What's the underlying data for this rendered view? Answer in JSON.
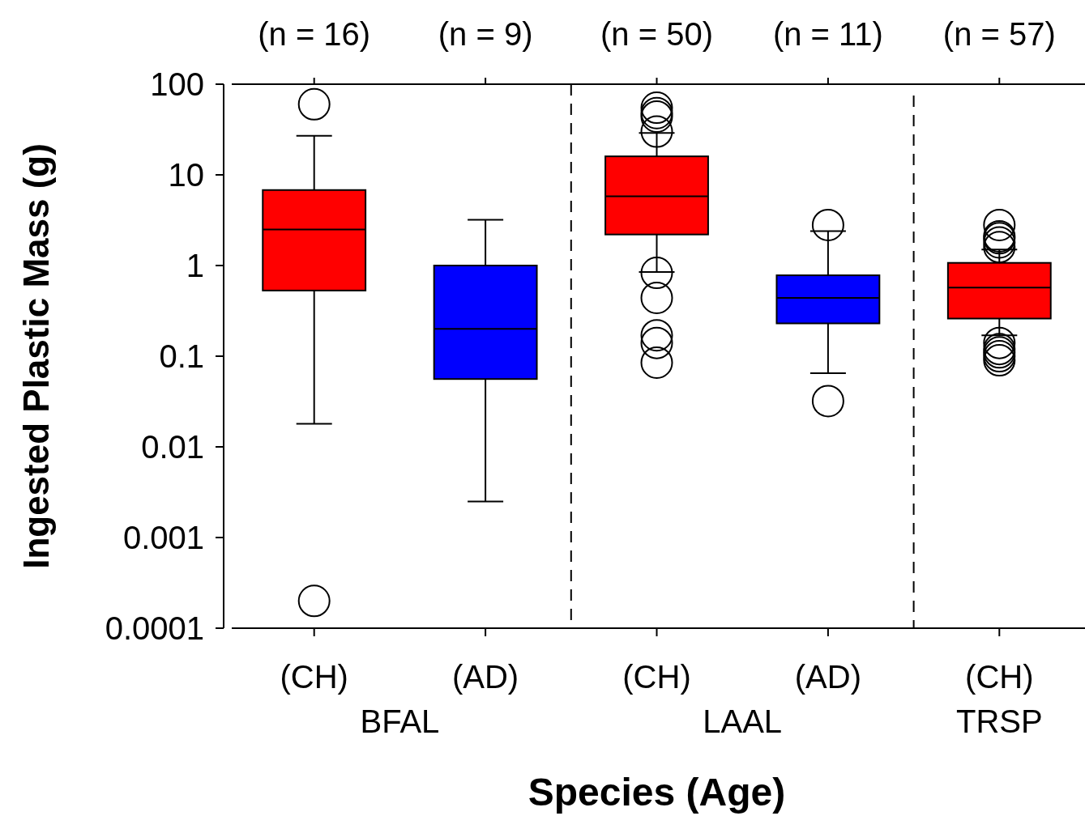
{
  "chart_data": {
    "type": "box",
    "xlabel": "Species (Age)",
    "ylabel": "Ingested Plastic Mass (g)",
    "categories": [
      "(CH)",
      "(AD)",
      "(CH)",
      "(AD)",
      "(CH)"
    ],
    "colors": [
      "#ff0000",
      "#0000ff",
      "#ff0000",
      "#0000ff",
      "#ff0000"
    ],
    "boxes": [
      {
        "low": 0.018,
        "q1": 0.53,
        "median": 2.5,
        "q3": 6.8,
        "high": 27,
        "outliers": [
          60,
          0.0002
        ]
      },
      {
        "low": 0.0025,
        "q1": 0.056,
        "median": 0.2,
        "q3": 1.0,
        "high": 3.2
      },
      {
        "low": 0.85,
        "q1": 2.2,
        "median": 5.8,
        "q3": 16,
        "high": 29,
        "outliers": [
          55,
          48,
          44,
          30,
          0.83,
          0.44,
          0.17,
          0.14,
          0.085
        ]
      },
      {
        "low": 0.065,
        "q1": 0.23,
        "median": 0.44,
        "q3": 0.78,
        "high": 2.4,
        "outliers": [
          2.8,
          0.032
        ]
      },
      {
        "low": 0.17,
        "q1": 0.26,
        "median": 0.57,
        "q3": 1.07,
        "high": 1.5,
        "outliers": [
          2.8,
          2.1,
          2.0,
          1.8,
          1.6,
          0.14,
          0.12,
          0.11,
          0.1,
          0.09
        ]
      }
    ],
    "log": true,
    "ylim": [
      0.0001,
      100
    ],
    "yticks": [
      0.0001,
      0.001,
      0.01,
      0.1,
      1,
      10,
      100
    ],
    "annotations": [
      "(n = 16)",
      "(n = 9)",
      "(n = 50)",
      "(n = 11)",
      "(n = 57)",
      "BFAL",
      "LAAL",
      "TRSP"
    ],
    "grid": false
  }
}
